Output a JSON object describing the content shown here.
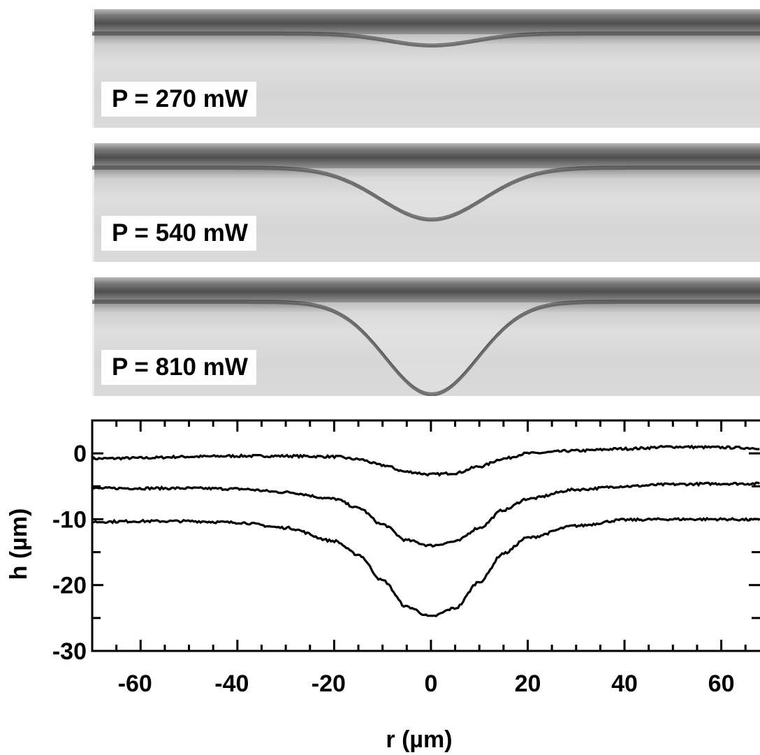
{
  "panels": [
    {
      "label": "P = 270 mW",
      "depth": 3.2,
      "halfwidth": 16
    },
    {
      "label": "P = 540 mW",
      "depth": 14,
      "halfwidth": 19
    },
    {
      "label": "P = 810 mW",
      "depth": 25,
      "halfwidth": 17
    }
  ],
  "chart_data": {
    "type": "line",
    "xlabel": "r (µm)",
    "ylabel": "h (µm)",
    "xlim": [
      -70,
      68
    ],
    "ylim": [
      -30,
      5
    ],
    "xticks": [
      -60,
      -40,
      -20,
      0,
      20,
      40,
      60
    ],
    "yticks": [
      0,
      -10,
      -20,
      -30
    ],
    "x": [
      -70,
      -60,
      -50,
      -40,
      -30,
      -20,
      -15,
      -10,
      -5,
      0,
      5,
      10,
      15,
      20,
      30,
      40,
      50,
      60,
      68
    ],
    "series": [
      {
        "values": [
          -0.8,
          -0.7,
          -0.5,
          -0.4,
          -0.4,
          -0.5,
          -0.9,
          -1.8,
          -2.8,
          -3.2,
          -3.0,
          -2.0,
          -0.8,
          0.0,
          0.4,
          0.7,
          1.0,
          0.9,
          0.8
        ]
      },
      {
        "values": [
          -5.3,
          -5.3,
          -5.3,
          -5.4,
          -5.9,
          -6.9,
          -8.3,
          -10.8,
          -13.2,
          -14.0,
          -13.4,
          -11.3,
          -8.6,
          -6.9,
          -5.5,
          -5.0,
          -4.7,
          -4.6,
          -4.6
        ]
      },
      {
        "values": [
          -10.4,
          -10.3,
          -10.3,
          -10.5,
          -11.3,
          -13.3,
          -15.4,
          -19.3,
          -23.3,
          -24.8,
          -23.5,
          -19.5,
          -15.2,
          -12.8,
          -11.0,
          -10.1,
          -10.0,
          -10.0,
          -10.1
        ]
      }
    ],
    "grid": false,
    "legend": "none"
  }
}
